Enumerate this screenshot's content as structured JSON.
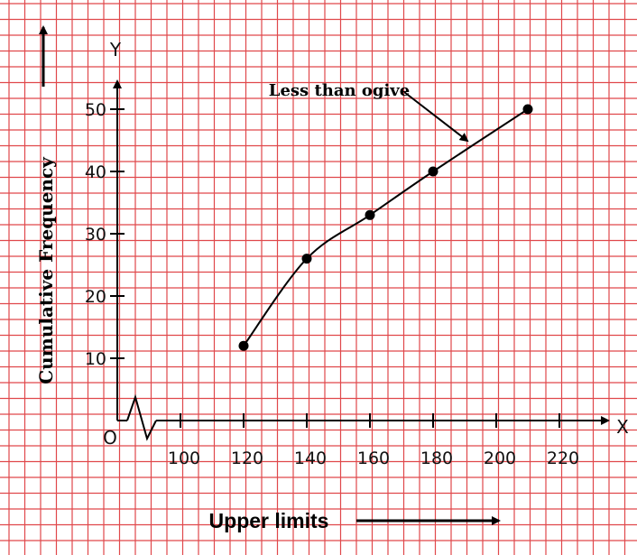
{
  "chart_data": {
    "type": "line",
    "title": "",
    "xlabel": "Upper limits",
    "ylabel": "Cumulative Frequency",
    "x_axis_letter": "X",
    "y_axis_letter": "Y",
    "origin_label": "O",
    "x_ticks": [
      100,
      120,
      140,
      160,
      180,
      200,
      220
    ],
    "x_tick_labels": [
      "100",
      "120",
      "140",
      "160",
      "180",
      "200",
      "220"
    ],
    "y_ticks": [
      10,
      20,
      30,
      40,
      50
    ],
    "y_tick_labels": [
      "10",
      "20",
      "30",
      "40",
      "50"
    ],
    "xlim": [
      80,
      230
    ],
    "ylim": [
      0,
      55
    ],
    "grid": true,
    "axis_break_on_x": true,
    "series": [
      {
        "name": "Less than ogive",
        "x": [
          120,
          140,
          160,
          180,
          210
        ],
        "y": [
          12,
          26,
          33,
          40,
          50
        ]
      }
    ],
    "annotations": [
      {
        "text": "Less than ogive",
        "points_to_series": 0
      }
    ]
  },
  "colors": {
    "grid": "#e0484b",
    "axes": "#000000",
    "line": "#000000",
    "background": "#ffffff"
  }
}
